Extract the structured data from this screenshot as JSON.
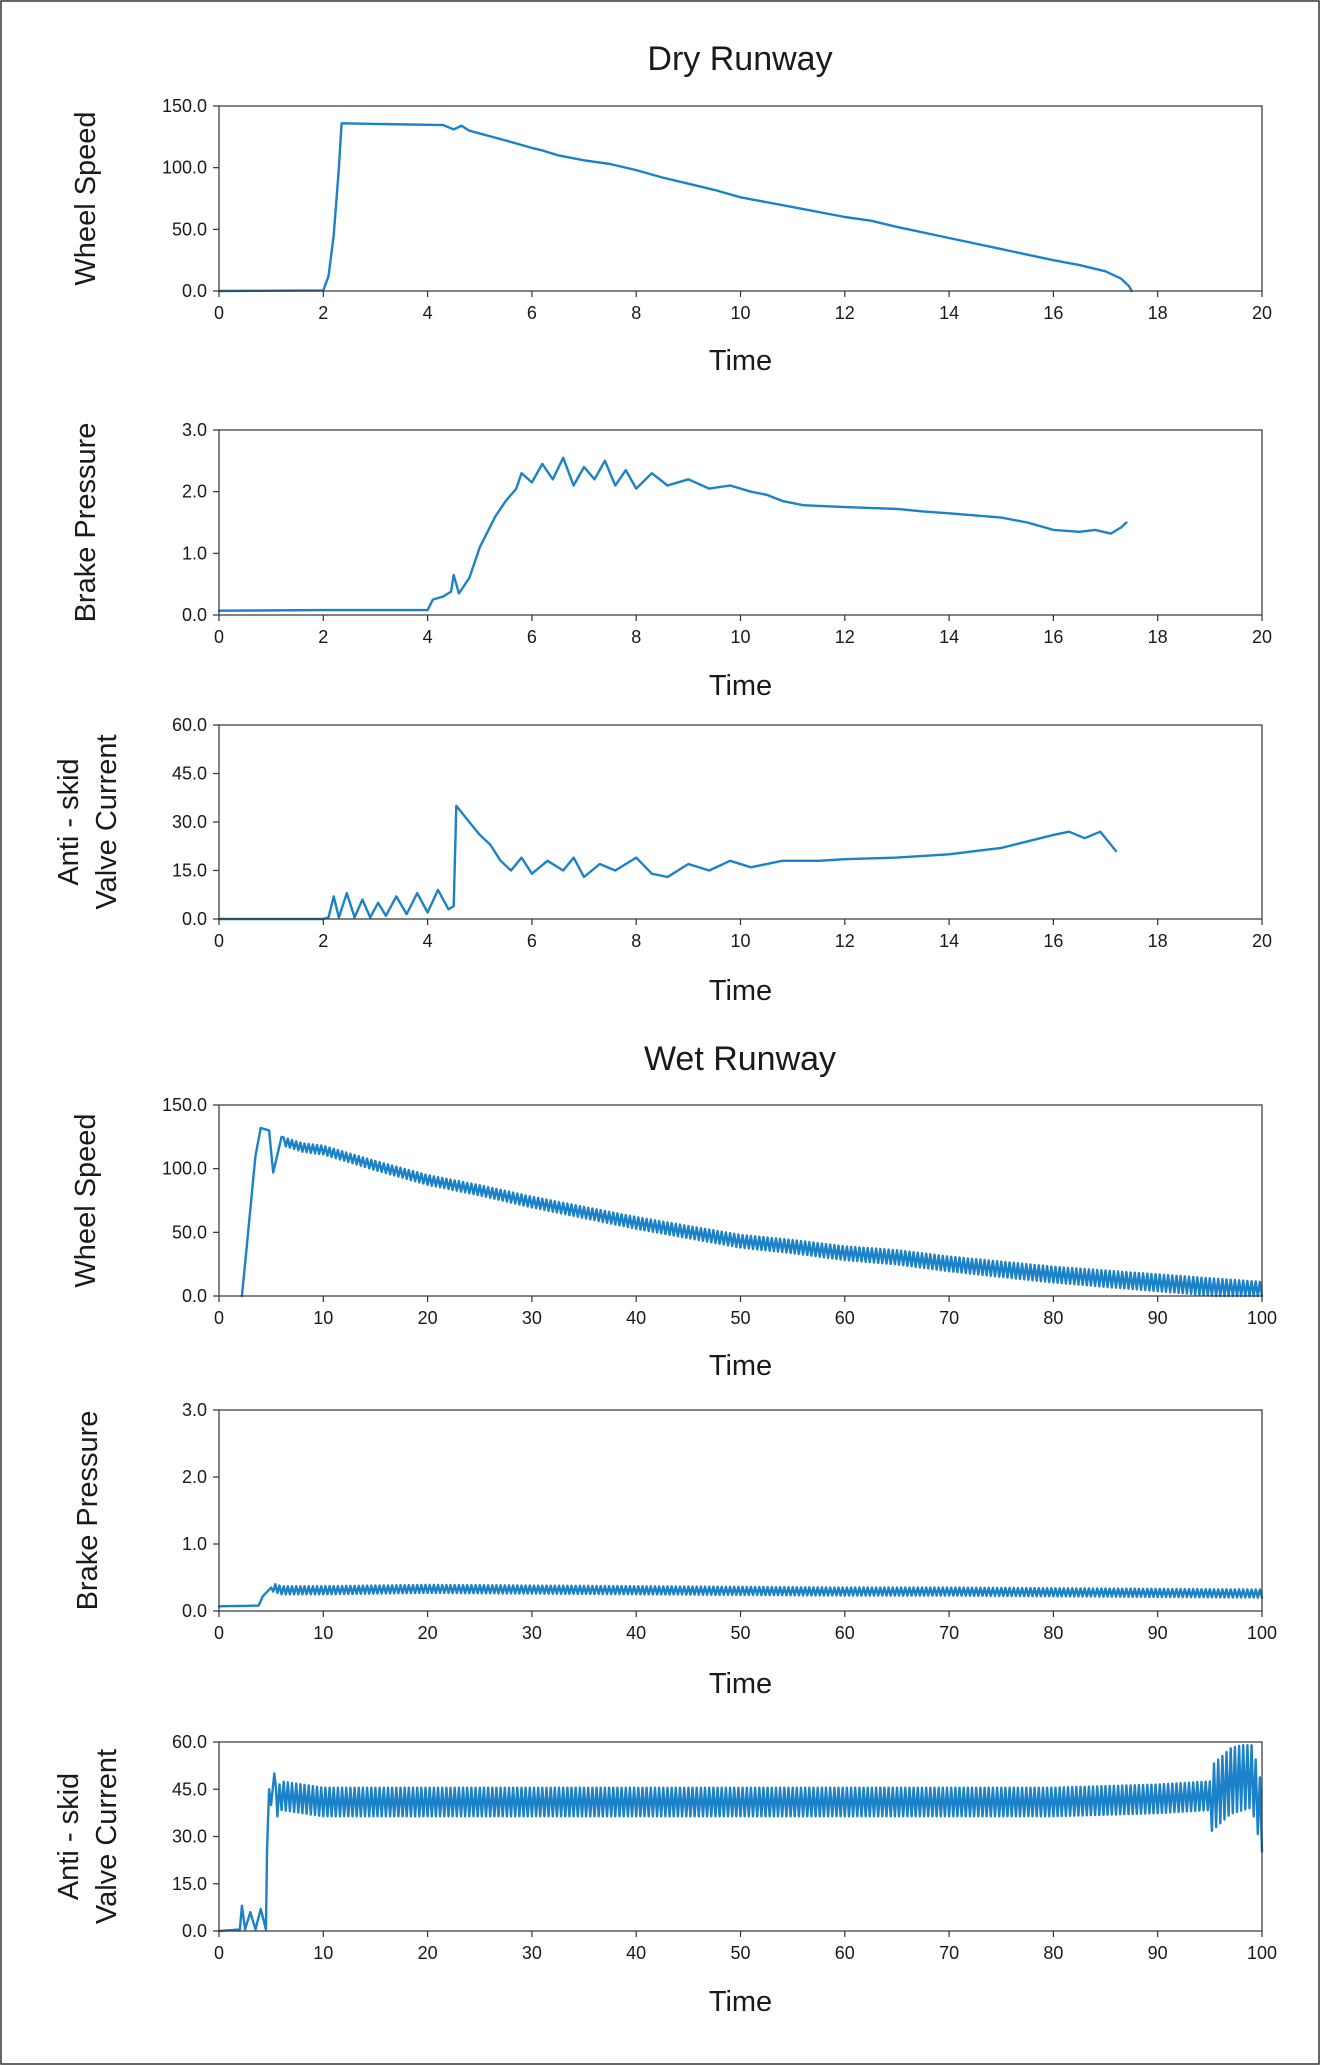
{
  "figure": {
    "dry_title": "Dry Runway",
    "wet_title": "Wet Runway"
  },
  "colors": {
    "series": "#1c82c8",
    "axis": "#333333"
  },
  "chart_data": [
    {
      "id": "dry-wheel-speed",
      "group": "Dry Runway",
      "type": "line",
      "ylabel": [
        "Wheel Speed"
      ],
      "xlabel": "Time",
      "xlim": [
        0,
        20
      ],
      "ylim": [
        0,
        150
      ],
      "xticks": [
        0,
        2,
        4,
        6,
        8,
        10,
        12,
        14,
        16,
        18,
        20
      ],
      "yticks": [
        "0.0",
        "50.0",
        "100.0",
        "150.0"
      ],
      "series": [
        {
          "values": [
            [
              0,
              0
            ],
            [
              2,
              0.5
            ],
            [
              2.1,
              12
            ],
            [
              2.2,
              45
            ],
            [
              2.3,
              100
            ],
            [
              2.35,
              136
            ],
            [
              3,
              135.5
            ],
            [
              4.3,
              134.5
            ],
            [
              4.5,
              131
            ],
            [
              4.65,
              134
            ],
            [
              4.8,
              130
            ],
            [
              5.5,
              122
            ],
            [
              6,
              116
            ],
            [
              6.2,
              114
            ],
            [
              6.5,
              110
            ],
            [
              7,
              106
            ],
            [
              7.5,
              103
            ],
            [
              8,
              98
            ],
            [
              8.5,
              92
            ],
            [
              9,
              87
            ],
            [
              9.5,
              82
            ],
            [
              10,
              76
            ],
            [
              11,
              68
            ],
            [
              12,
              60
            ],
            [
              12.5,
              57
            ],
            [
              13,
              52
            ],
            [
              14,
              43
            ],
            [
              15,
              34
            ],
            [
              16,
              25
            ],
            [
              16.5,
              21
            ],
            [
              17,
              16
            ],
            [
              17.3,
              10
            ],
            [
              17.45,
              4
            ],
            [
              17.5,
              0
            ]
          ]
        }
      ]
    },
    {
      "id": "dry-brake-pressure",
      "group": "Dry Runway",
      "type": "line",
      "ylabel": [
        "Brake Pressure"
      ],
      "xlabel": "Time",
      "xlim": [
        0,
        20
      ],
      "ylim": [
        0,
        3
      ],
      "xticks": [
        0,
        2,
        4,
        6,
        8,
        10,
        12,
        14,
        16,
        18,
        20
      ],
      "yticks": [
        "0.0",
        "1.0",
        "2.0",
        "3.0"
      ],
      "series": [
        {
          "values": [
            [
              0,
              0.07
            ],
            [
              2,
              0.08
            ],
            [
              4,
              0.08
            ],
            [
              4.1,
              0.25
            ],
            [
              4.3,
              0.3
            ],
            [
              4.45,
              0.38
            ],
            [
              4.5,
              0.65
            ],
            [
              4.6,
              0.35
            ],
            [
              4.8,
              0.6
            ],
            [
              5,
              1.1
            ],
            [
              5.3,
              1.6
            ],
            [
              5.5,
              1.85
            ],
            [
              5.7,
              2.05
            ],
            [
              5.8,
              2.3
            ],
            [
              6,
              2.15
            ],
            [
              6.2,
              2.45
            ],
            [
              6.4,
              2.2
            ],
            [
              6.6,
              2.55
            ],
            [
              6.8,
              2.1
            ],
            [
              7,
              2.4
            ],
            [
              7.2,
              2.2
            ],
            [
              7.4,
              2.5
            ],
            [
              7.6,
              2.1
            ],
            [
              7.8,
              2.35
            ],
            [
              8,
              2.05
            ],
            [
              8.3,
              2.3
            ],
            [
              8.6,
              2.1
            ],
            [
              9,
              2.2
            ],
            [
              9.4,
              2.05
            ],
            [
              9.8,
              2.1
            ],
            [
              10.2,
              2
            ],
            [
              10.5,
              1.95
            ],
            [
              10.8,
              1.85
            ],
            [
              11.2,
              1.78
            ],
            [
              12,
              1.75
            ],
            [
              13,
              1.72
            ],
            [
              13.5,
              1.68
            ],
            [
              14,
              1.65
            ],
            [
              15,
              1.58
            ],
            [
              15.5,
              1.5
            ],
            [
              16,
              1.38
            ],
            [
              16.5,
              1.35
            ],
            [
              16.8,
              1.38
            ],
            [
              17.1,
              1.32
            ],
            [
              17.3,
              1.42
            ],
            [
              17.4,
              1.5
            ]
          ]
        }
      ]
    },
    {
      "id": "dry-valve-current",
      "group": "Dry Runway",
      "type": "line",
      "ylabel": [
        "Anti - skid",
        "Valve Current"
      ],
      "xlabel": "Time",
      "xlim": [
        0,
        20
      ],
      "ylim": [
        0,
        60
      ],
      "xticks": [
        0,
        2,
        4,
        6,
        8,
        10,
        12,
        14,
        16,
        18,
        20
      ],
      "yticks": [
        "0.0",
        "15.0",
        "30.0",
        "45.0",
        "60.0"
      ],
      "series": [
        {
          "values": [
            [
              0,
              0
            ],
            [
              2,
              0
            ],
            [
              2.1,
              0.5
            ],
            [
              2.2,
              7
            ],
            [
              2.3,
              0.5
            ],
            [
              2.45,
              8
            ],
            [
              2.6,
              0.5
            ],
            [
              2.75,
              6
            ],
            [
              2.9,
              0.5
            ],
            [
              3.05,
              5
            ],
            [
              3.2,
              1
            ],
            [
              3.4,
              7
            ],
            [
              3.6,
              1.5
            ],
            [
              3.8,
              8
            ],
            [
              4,
              2
            ],
            [
              4.2,
              9
            ],
            [
              4.4,
              3
            ],
            [
              4.5,
              4
            ],
            [
              4.55,
              35
            ],
            [
              4.7,
              32
            ],
            [
              4.85,
              29
            ],
            [
              5,
              26
            ],
            [
              5.2,
              23
            ],
            [
              5.4,
              18
            ],
            [
              5.6,
              15
            ],
            [
              5.8,
              19
            ],
            [
              6,
              14
            ],
            [
              6.3,
              18
            ],
            [
              6.6,
              15
            ],
            [
              6.8,
              19
            ],
            [
              7,
              13
            ],
            [
              7.3,
              17
            ],
            [
              7.6,
              15
            ],
            [
              8,
              19
            ],
            [
              8.3,
              14
            ],
            [
              8.6,
              13
            ],
            [
              9,
              17
            ],
            [
              9.4,
              15
            ],
            [
              9.8,
              18
            ],
            [
              10.2,
              16
            ],
            [
              10.8,
              18
            ],
            [
              11.5,
              18
            ],
            [
              12,
              18.5
            ],
            [
              13,
              19
            ],
            [
              14,
              20
            ],
            [
              14.5,
              21
            ],
            [
              15,
              22
            ],
            [
              15.5,
              24
            ],
            [
              16,
              26
            ],
            [
              16.3,
              27
            ],
            [
              16.6,
              25
            ],
            [
              16.9,
              27
            ],
            [
              17.1,
              23
            ],
            [
              17.2,
              21
            ]
          ]
        }
      ]
    },
    {
      "id": "wet-wheel-speed",
      "group": "Wet Runway",
      "type": "line",
      "ylabel": [
        "Wheel Speed"
      ],
      "xlabel": "Time",
      "xlim": [
        0,
        100
      ],
      "ylim": [
        0,
        150
      ],
      "xticks": [
        0,
        10,
        20,
        30,
        40,
        50,
        60,
        70,
        80,
        90,
        100
      ],
      "yticks": [
        "0.0",
        "50.0",
        "100.0",
        "150.0"
      ],
      "series": [
        {
          "values": [
            [
              2.2,
              0
            ],
            [
              3.5,
              110
            ],
            [
              4,
              132
            ],
            [
              4.8,
              130
            ],
            [
              5.2,
              97
            ],
            [
              6,
              125
            ],
            [
              8,
              120
            ],
            [
              10,
              118
            ],
            [
              15,
              106
            ],
            [
              20,
              95
            ],
            [
              25,
              87
            ],
            [
              30,
              78
            ],
            [
              35,
              70
            ],
            [
              40,
              62
            ],
            [
              45,
              55
            ],
            [
              50,
              48
            ],
            [
              55,
              44
            ],
            [
              60,
              39
            ],
            [
              65,
              36
            ],
            [
              70,
              31
            ],
            [
              75,
              27
            ],
            [
              80,
              23
            ],
            [
              85,
              20
            ],
            [
              90,
              17
            ],
            [
              95,
              14
            ],
            [
              100,
              11
            ]
          ]
        }
      ]
    },
    {
      "id": "wet-brake-pressure",
      "group": "Wet Runway",
      "type": "line",
      "ylabel": [
        "Brake Pressure"
      ],
      "xlabel": "Time",
      "xlim": [
        0,
        100
      ],
      "ylim": [
        0,
        3
      ],
      "xticks": [
        0,
        10,
        20,
        30,
        40,
        50,
        60,
        70,
        80,
        90,
        100
      ],
      "yticks": [
        "0.0",
        "1.0",
        "2.0",
        "3.0"
      ],
      "series": [
        {
          "values": [
            [
              0,
              0.07
            ],
            [
              3.8,
              0.08
            ],
            [
              4.2,
              0.22
            ],
            [
              5,
              0.35
            ],
            [
              6,
              0.3
            ],
            [
              10,
              0.3
            ],
            [
              20,
              0.32
            ],
            [
              30,
              0.31
            ],
            [
              40,
              0.3
            ],
            [
              50,
              0.29
            ],
            [
              60,
              0.28
            ],
            [
              70,
              0.28
            ],
            [
              80,
              0.27
            ],
            [
              90,
              0.26
            ],
            [
              100,
              0.25
            ]
          ]
        }
      ]
    },
    {
      "id": "wet-valve-current",
      "group": "Wet Runway",
      "type": "line",
      "ylabel": [
        "Anti - skid",
        "Valve Current"
      ],
      "xlabel": "Time",
      "xlim": [
        0,
        100
      ],
      "ylim": [
        0,
        60
      ],
      "xticks": [
        0,
        10,
        20,
        30,
        40,
        50,
        60,
        70,
        80,
        90,
        100
      ],
      "yticks": [
        "0.0",
        "15.0",
        "30.0",
        "45.0",
        "60.0"
      ],
      "series": [
        {
          "values": [
            [
              0,
              0
            ],
            [
              2,
              0.5
            ],
            [
              2.2,
              8
            ],
            [
              2.5,
              0.5
            ],
            [
              3,
              6
            ],
            [
              3.5,
              0.5
            ],
            [
              4,
              7
            ],
            [
              4.5,
              0.5
            ],
            [
              4.6,
              25
            ],
            [
              4.8,
              45
            ],
            [
              5,
              40
            ],
            [
              5.3,
              50
            ],
            [
              5.6,
              42
            ],
            [
              6,
              44
            ],
            [
              10,
              42
            ],
            [
              20,
              42
            ],
            [
              30,
              42
            ],
            [
              40,
              42
            ],
            [
              50,
              42
            ],
            [
              60,
              42
            ],
            [
              70,
              42
            ],
            [
              80,
              42
            ],
            [
              90,
              43
            ],
            [
              95,
              44
            ],
            [
              97,
              50
            ],
            [
              99,
              52
            ],
            [
              100,
              38
            ]
          ]
        }
      ]
    }
  ]
}
